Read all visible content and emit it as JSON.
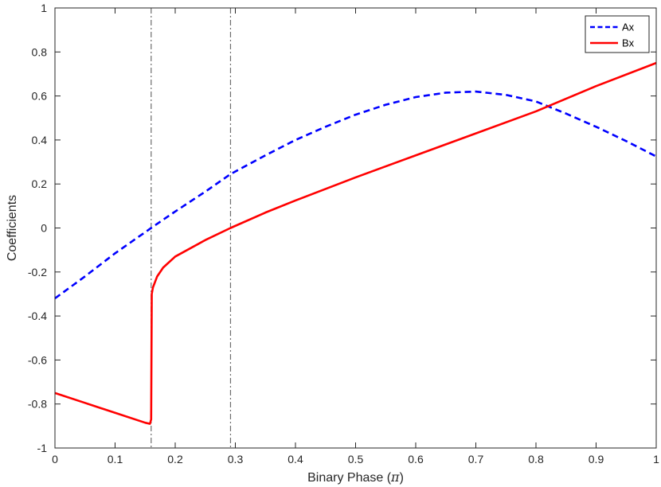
{
  "chart_data": {
    "type": "line",
    "xlabel": "Binary Phase (",
    "xlabel_symbol": "π",
    "xlabel_close": ")",
    "ylabel": "Coefficients",
    "xlim": [
      0,
      1
    ],
    "ylim": [
      -1,
      1
    ],
    "x_ticks": [
      0,
      0.1,
      0.2,
      0.3,
      0.4,
      0.5,
      0.6,
      0.7,
      0.8,
      0.9,
      1
    ],
    "x_tick_labels": [
      "0",
      "0.1",
      "0.2",
      "0.3",
      "0.4",
      "0.5",
      "0.6",
      "0.7",
      "0.8",
      "0.9",
      "1"
    ],
    "y_ticks": [
      -1,
      -0.8,
      -0.6,
      -0.4,
      -0.2,
      0,
      0.2,
      0.4,
      0.6,
      0.8,
      1
    ],
    "y_tick_labels": [
      "-1",
      "-0.8",
      "-0.6",
      "-0.4",
      "-0.2",
      "0",
      "0.2",
      "0.4",
      "0.6",
      "0.8",
      "1"
    ],
    "grid": false,
    "legend_position": "top-right",
    "vlines": [
      {
        "x": 0.16,
        "color": "#6d6d6d",
        "style": "dash-dot"
      },
      {
        "x": 0.292,
        "color": "#6d6d6d",
        "style": "dash-dot"
      }
    ],
    "series": [
      {
        "name": "Ax",
        "color": "#0000ff",
        "style": "dashed",
        "x": [
          0,
          0.05,
          0.1,
          0.16,
          0.2,
          0.25,
          0.292,
          0.35,
          0.4,
          0.45,
          0.5,
          0.55,
          0.6,
          0.65,
          0.7,
          0.75,
          0.8,
          0.85,
          0.9,
          0.95,
          1
        ],
        "y": [
          -0.32,
          -0.22,
          -0.115,
          0.0,
          0.075,
          0.165,
          0.245,
          0.33,
          0.4,
          0.46,
          0.515,
          0.56,
          0.595,
          0.615,
          0.62,
          0.605,
          0.575,
          0.52,
          0.46,
          0.395,
          0.325
        ]
      },
      {
        "name": "Bx",
        "color": "#ff0000",
        "style": "solid",
        "x": [
          0,
          0.05,
          0.1,
          0.15,
          0.158,
          0.16,
          0.161,
          0.163,
          0.17,
          0.18,
          0.2,
          0.25,
          0.292,
          0.35,
          0.4,
          0.5,
          0.6,
          0.7,
          0.8,
          0.9,
          1
        ],
        "y": [
          -0.75,
          -0.795,
          -0.84,
          -0.885,
          -0.89,
          -0.87,
          -0.3,
          -0.27,
          -0.22,
          -0.18,
          -0.13,
          -0.055,
          0.0,
          0.07,
          0.125,
          0.23,
          0.33,
          0.43,
          0.53,
          0.645,
          0.75
        ]
      }
    ]
  }
}
